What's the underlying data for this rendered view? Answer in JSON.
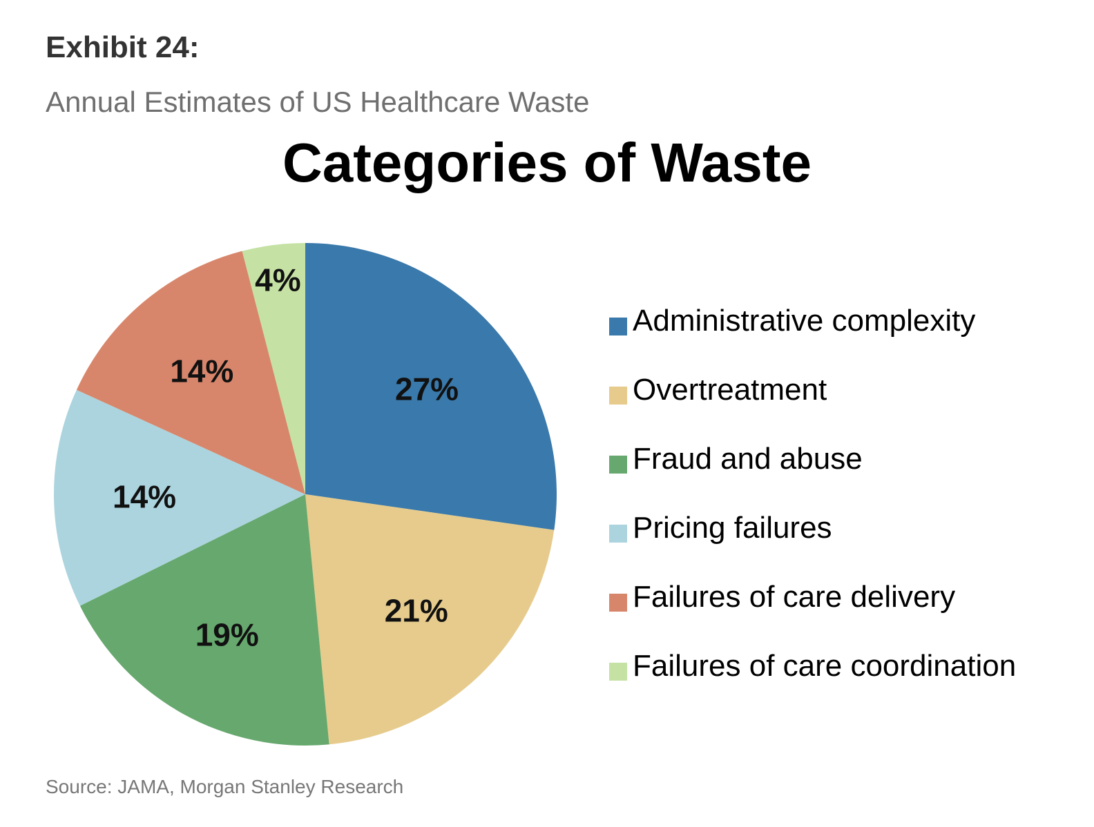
{
  "header": {
    "exhibit": "Exhibit 24:",
    "subtitle": "Annual Estimates of US Healthcare Waste"
  },
  "chart_data": {
    "type": "pie",
    "title": "Categories of Waste",
    "categories": [
      "Administrative complexity",
      "Overtreatment",
      "Fraud and abuse",
      "Pricing failures",
      "Failures of care delivery",
      "Failures of care coordination"
    ],
    "values": [
      27,
      21,
      19,
      14,
      14,
      4
    ],
    "labels": [
      "27%",
      "21%",
      "19%",
      "14%",
      "14%",
      "4%"
    ],
    "colors": [
      "#3a79ab",
      "#e6cb8c",
      "#66a86e",
      "#acd4de",
      "#d8866b",
      "#c5e2a4"
    ],
    "legend_position": "right"
  },
  "footer": {
    "source": "Source: JAMA, Morgan Stanley Research"
  }
}
